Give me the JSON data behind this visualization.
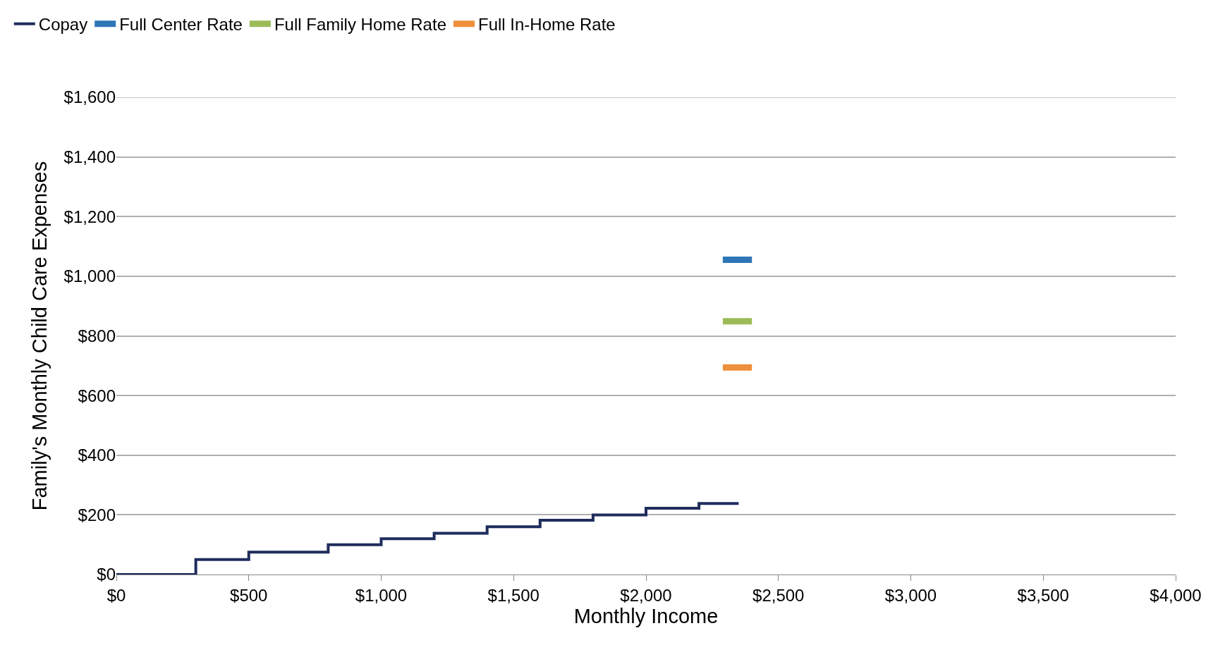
{
  "chart_data": {
    "type": "step",
    "xlabel": "Monthly Income",
    "ylabel": "Family's Monthly Child Care Expenses",
    "series": [
      {
        "name": "Copay",
        "color": "#1f2d5c",
        "x": [
          0,
          300,
          500,
          800,
          1000,
          1200,
          1400,
          1600,
          1800,
          2000,
          2200,
          2350
        ],
        "values": [
          0,
          50,
          75,
          100,
          120,
          138,
          160,
          182,
          200,
          222,
          238,
          238
        ]
      },
      {
        "name": "Full Center Rate",
        "type": "line",
        "color": "#2e75b6",
        "x": [
          2290,
          2400
        ],
        "values": [
          1055,
          1055
        ]
      },
      {
        "name": "Full Family Home Rate",
        "type": "line",
        "color": "#9bbb59",
        "x": [
          2290,
          2400
        ],
        "values": [
          849,
          849
        ]
      },
      {
        "name": "Full In-Home Rate",
        "type": "line",
        "color": "#ed8f3b",
        "x": [
          2290,
          2400
        ],
        "values": [
          694,
          694
        ]
      }
    ],
    "xlim": [
      0,
      4000
    ],
    "xticks": [
      {
        "value": 0,
        "label": "$0"
      },
      {
        "value": 500,
        "label": "$500"
      },
      {
        "value": 1000,
        "label": "$1,000"
      },
      {
        "value": 1500,
        "label": "$1,500"
      },
      {
        "value": 2000,
        "label": "$2,000"
      },
      {
        "value": 2500,
        "label": "$2,500"
      },
      {
        "value": 3000,
        "label": "$3,000"
      },
      {
        "value": 3500,
        "label": "$3,500"
      },
      {
        "value": 4000,
        "label": "$4,000"
      }
    ],
    "ylim": [
      0,
      1600
    ],
    "yticks": [
      {
        "value": 0,
        "label": "$0"
      },
      {
        "value": 200,
        "label": "$200"
      },
      {
        "value": 400,
        "label": "$400"
      },
      {
        "value": 600,
        "label": "$600"
      },
      {
        "value": 800,
        "label": "$800"
      },
      {
        "value": 1000,
        "label": "$1,000"
      },
      {
        "value": 1200,
        "label": "$1,200"
      },
      {
        "value": 1400,
        "label": "$1,400"
      },
      {
        "value": 1600,
        "label": "$1,600"
      }
    ],
    "grid": "y",
    "legend": "top left"
  }
}
